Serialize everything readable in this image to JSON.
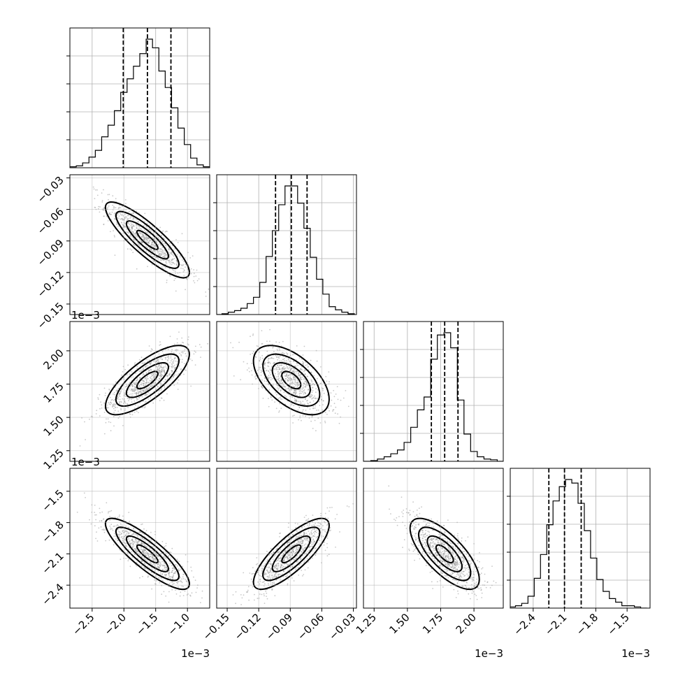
{
  "chart_data": {
    "type": "corner",
    "grid": true,
    "parameters": [
      {
        "range": [
          -2.85,
          -0.65
        ],
        "ticks": [
          -2.5,
          -2.0,
          -1.5,
          -1.0
        ],
        "tick_labels": [
          "−2.5",
          "−2.0",
          "−1.5",
          "−1.0"
        ],
        "offset": "1e−3",
        "quantiles": [
          -2.01,
          -1.63,
          -1.26
        ],
        "hist_peak": 0.6
      },
      {
        "range": [
          -0.16,
          -0.027
        ],
        "ticks": [
          -0.15,
          -0.12,
          -0.09,
          -0.06,
          -0.03
        ],
        "tick_labels": [
          "−0.15",
          "−0.12",
          "−0.09",
          "−0.06",
          "−0.03"
        ],
        "offset": "",
        "quantiles": [
          -0.104,
          -0.089,
          -0.074
        ],
        "hist_peak": 0.5
      },
      {
        "range": [
          1.17,
          2.22
        ],
        "ticks": [
          1.25,
          1.5,
          1.75,
          2.0
        ],
        "tick_labels": [
          "1.25",
          "1.50",
          "1.75",
          "2.00"
        ],
        "offset": "1e−3",
        "quantiles": [
          1.68,
          1.78,
          1.88
        ],
        "hist_peak": 0.55
      },
      {
        "range": [
          -2.62,
          -1.28
        ],
        "ticks": [
          -2.4,
          -2.1,
          -1.8,
          -1.5
        ],
        "tick_labels": [
          "−2.4",
          "−2.1",
          "−1.8",
          "−1.5"
        ],
        "offset": "1e−3",
        "quantiles": [
          -2.25,
          -2.1,
          -1.94
        ],
        "hist_peak": 0.55
      }
    ],
    "histograms": [
      {
        "param": 0,
        "centers": [
          -2.8,
          -2.7,
          -2.6,
          -2.5,
          -2.4,
          -2.3,
          -2.2,
          -2.1,
          -2.0,
          -1.9,
          -1.8,
          -1.7,
          -1.6,
          -1.5,
          -1.4,
          -1.3,
          -1.2,
          -1.1,
          -1.0,
          -0.9,
          -0.8,
          -0.7
        ],
        "counts": [
          1,
          2,
          5,
          11,
          18,
          32,
          44,
          59,
          78,
          92,
          105,
          118,
          133,
          124,
          100,
          83,
          62,
          41,
          24,
          10,
          3,
          1
        ]
      },
      {
        "param": 1,
        "centers": [
          -0.158,
          -0.152,
          -0.146,
          -0.14,
          -0.134,
          -0.128,
          -0.122,
          -0.116,
          -0.11,
          -0.104,
          -0.098,
          -0.092,
          -0.086,
          -0.08,
          -0.074,
          -0.068,
          -0.062,
          -0.056,
          -0.05,
          -0.044,
          -0.038,
          -0.032
        ],
        "counts": [
          0,
          1,
          3,
          5,
          8,
          14,
          22,
          41,
          74,
          107,
          140,
          164,
          164,
          142,
          110,
          73,
          45,
          26,
          10,
          6,
          3,
          1
        ]
      },
      {
        "param": 2,
        "centers": [
          1.2,
          1.25,
          1.3,
          1.35,
          1.4,
          1.45,
          1.5,
          1.55,
          1.6,
          1.65,
          1.7,
          1.75,
          1.8,
          1.85,
          1.9,
          1.95,
          2.0,
          2.05,
          2.1,
          2.15,
          2.2
        ],
        "counts": [
          0,
          1,
          3,
          6,
          10,
          15,
          25,
          45,
          68,
          85,
          135,
          167,
          170,
          150,
          81,
          36,
          13,
          6,
          3,
          2,
          0
        ]
      },
      {
        "param": 3,
        "centers": [
          -2.6,
          -2.54,
          -2.48,
          -2.42,
          -2.36,
          -2.3,
          -2.24,
          -2.18,
          -2.12,
          -2.06,
          -2.0,
          -1.94,
          -1.88,
          -1.82,
          -1.76,
          -1.7,
          -1.64,
          -1.58,
          -1.52,
          -1.46,
          -1.4,
          -1.34
        ],
        "counts": [
          1,
          2,
          4,
          10,
          25,
          45,
          70,
          90,
          102,
          108,
          105,
          88,
          65,
          42,
          24,
          14,
          8,
          5,
          2,
          2,
          1,
          0
        ]
      }
    ],
    "pairs": [
      {
        "x": 0,
        "y": 1,
        "mean": [
          -1.63,
          -0.089
        ],
        "sd": [
          0.33,
          0.018
        ],
        "rho": -0.86
      },
      {
        "x": 0,
        "y": 2,
        "mean": [
          -1.63,
          1.78
        ],
        "sd": [
          0.33,
          0.13
        ],
        "rho": 0.75
      },
      {
        "x": 1,
        "y": 2,
        "mean": [
          -0.089,
          1.78
        ],
        "sd": [
          0.018,
          0.13
        ],
        "rho": -0.55
      },
      {
        "x": 0,
        "y": 3,
        "mean": [
          -1.63,
          -2.1
        ],
        "sd": [
          0.33,
          0.17
        ],
        "rho": -0.85
      },
      {
        "x": 1,
        "y": 3,
        "mean": [
          -0.089,
          -2.1
        ],
        "sd": [
          0.018,
          0.17
        ],
        "rho": 0.8
      },
      {
        "x": 2,
        "y": 3,
        "mean": [
          1.78,
          -2.1
        ],
        "sd": [
          0.13,
          0.17
        ],
        "rho": -0.72
      }
    ],
    "contour_levels_sigma": [
      0.5,
      1.0,
      1.5,
      2.0
    ]
  }
}
